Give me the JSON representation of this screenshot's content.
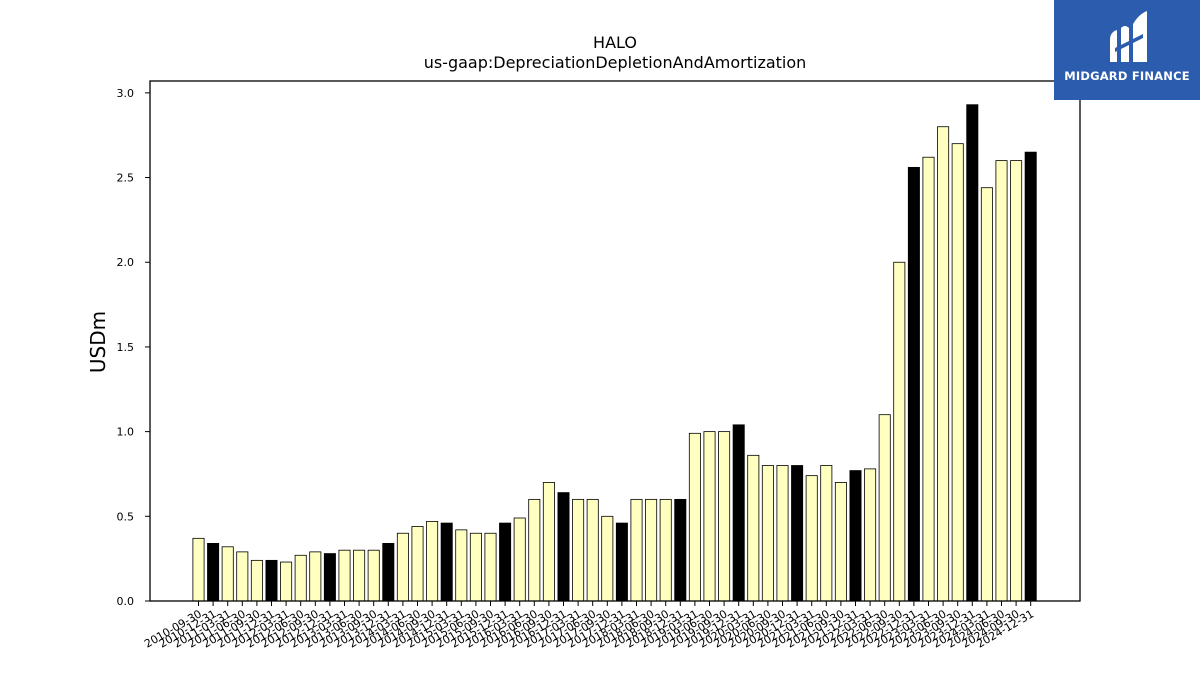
{
  "chart_data": {
    "type": "bar",
    "title": "HALO",
    "subtitle": "us-gaap:DepreciationDepletionAndAmortization",
    "xlabel": "",
    "ylabel": "USDm",
    "ylim": [
      0,
      3.07
    ],
    "yticks": [
      "0.0",
      "0.5",
      "1.0",
      "1.5",
      "2.0",
      "2.5",
      "3.0"
    ],
    "grid": false,
    "colors": {
      "quarter": "#ffffc0",
      "fiscal_year_end": "#000000",
      "edge": "#000000"
    },
    "categories": [
      "2010-09-30",
      "2010-12-31",
      "2011-03-31",
      "2011-06-30",
      "2011-09-30",
      "2011-12-31",
      "2012-03-31",
      "2012-06-30",
      "2012-09-30",
      "2012-12-31",
      "2013-03-31",
      "2013-06-30",
      "2013-09-30",
      "2013-12-31",
      "2014-03-31",
      "2014-06-30",
      "2014-09-30",
      "2014-12-31",
      "2015-03-31",
      "2015-06-30",
      "2015-09-30",
      "2015-12-31",
      "2016-03-31",
      "2016-06-30",
      "2016-09-30",
      "2016-12-31",
      "2017-03-31",
      "2017-06-30",
      "2017-09-30",
      "2017-12-31",
      "2018-03-31",
      "2018-06-30",
      "2018-09-30",
      "2018-12-31",
      "2019-03-31",
      "2019-06-30",
      "2019-09-30",
      "2019-12-31",
      "2020-03-31",
      "2020-06-30",
      "2020-09-30",
      "2020-12-31",
      "2021-03-31",
      "2021-06-30",
      "2021-09-30",
      "2021-12-31",
      "2022-03-31",
      "2022-06-30",
      "2022-09-30",
      "2022-12-31",
      "2023-03-31",
      "2023-06-30",
      "2023-09-30",
      "2023-12-31",
      "2024-03-31",
      "2024-06-30",
      "2024-09-30",
      "2024-12-31"
    ],
    "values": [
      0.37,
      0.34,
      0.32,
      0.29,
      0.24,
      0.24,
      0.23,
      0.27,
      0.29,
      0.28,
      0.3,
      0.3,
      0.3,
      0.34,
      0.4,
      0.44,
      0.47,
      0.46,
      0.42,
      0.4,
      0.4,
      0.46,
      0.49,
      0.6,
      0.7,
      0.64,
      0.6,
      0.6,
      0.5,
      0.46,
      0.6,
      0.6,
      0.6,
      0.6,
      0.99,
      1.0,
      1.0,
      1.04,
      0.86,
      0.8,
      0.8,
      0.8,
      0.74,
      0.8,
      0.7,
      0.77,
      0.78,
      1.1,
      2.0,
      2.56,
      2.62,
      2.8,
      2.7,
      2.93,
      2.44,
      2.6,
      2.6,
      2.65
    ],
    "fiscal_year_end": [
      false,
      true,
      false,
      false,
      false,
      true,
      false,
      false,
      false,
      true,
      false,
      false,
      false,
      true,
      false,
      false,
      false,
      true,
      false,
      false,
      false,
      true,
      false,
      false,
      false,
      true,
      false,
      false,
      false,
      true,
      false,
      false,
      false,
      true,
      false,
      false,
      false,
      true,
      false,
      false,
      false,
      true,
      false,
      false,
      false,
      true,
      false,
      false,
      false,
      true,
      false,
      false,
      false,
      true,
      false,
      false,
      false,
      true
    ]
  },
  "logo": {
    "text": "MIDGARD FINANCE"
  }
}
